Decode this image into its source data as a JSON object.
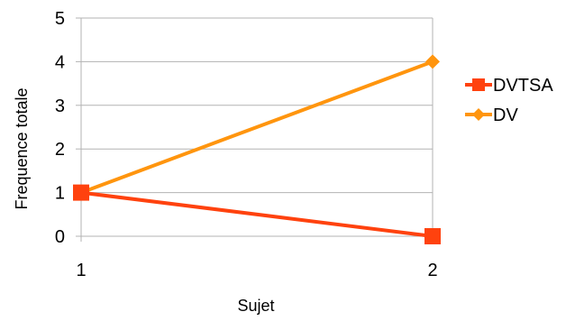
{
  "chart_data": {
    "type": "line",
    "title": "",
    "xlabel": "Sujet",
    "ylabel": "Frequence totale",
    "categories": [
      "1",
      "2"
    ],
    "ylim": [
      0,
      5
    ],
    "yticks": [
      0,
      1,
      2,
      3,
      4,
      5
    ],
    "grid": "horizontal",
    "legend_position": "right",
    "series": [
      {
        "name": "DVTSA",
        "values": [
          1,
          0
        ],
        "color": "#ff420e",
        "marker": "square"
      },
      {
        "name": "DV",
        "values": [
          1,
          4
        ],
        "color": "#ff950e",
        "marker": "diamond"
      }
    ]
  }
}
